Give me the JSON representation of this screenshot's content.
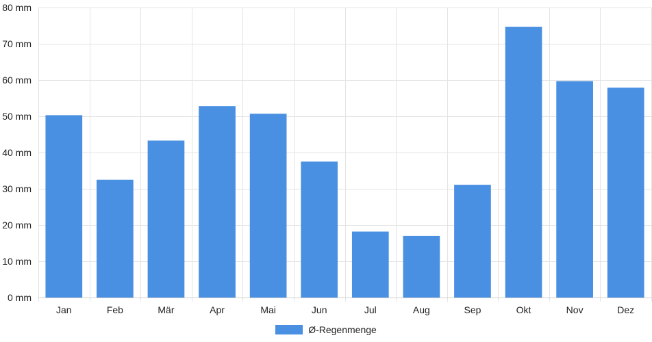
{
  "chart_data": {
    "type": "bar",
    "categories": [
      "Jan",
      "Feb",
      "Mär",
      "Apr",
      "Mai",
      "Jun",
      "Jul",
      "Aug",
      "Sep",
      "Okt",
      "Nov",
      "Dez"
    ],
    "series": [
      {
        "name": "Ø-Regenmenge",
        "values": [
          50.3,
          32.5,
          43.3,
          52.8,
          50.7,
          37.5,
          18.2,
          17.0,
          31.1,
          74.7,
          59.7,
          57.9
        ]
      }
    ],
    "ylim": [
      0,
      80
    ],
    "yticks": [
      0,
      10,
      20,
      30,
      40,
      50,
      60,
      70,
      80
    ],
    "ytick_labels": [
      "0 mm",
      "10 mm",
      "20 mm",
      "30 mm",
      "40 mm",
      "50 mm",
      "60 mm",
      "70 mm",
      "80 mm"
    ],
    "grid": true,
    "legend_position": "bottom",
    "color": "#4a90e2"
  }
}
